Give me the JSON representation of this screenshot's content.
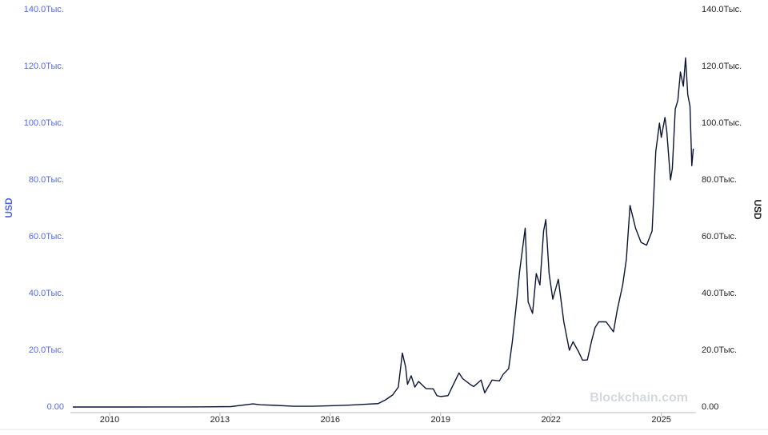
{
  "chart_data": {
    "type": "line",
    "y_label": "USD",
    "y2_label": "USD",
    "annotation": "Blockchain.com",
    "color": "#0b1433",
    "x": [
      2009.0,
      2010.5,
      2011.45,
      2012.0,
      2013.3,
      2013.9,
      2014.1,
      2014.5,
      2015.0,
      2015.5,
      2016.0,
      2016.5,
      2017.0,
      2017.3,
      2017.5,
      2017.7,
      2017.85,
      2017.96,
      2018.05,
      2018.1,
      2018.2,
      2018.3,
      2018.4,
      2018.6,
      2018.8,
      2018.9,
      2019.0,
      2019.2,
      2019.35,
      2019.5,
      2019.6,
      2019.8,
      2019.9,
      2020.1,
      2020.2,
      2020.4,
      2020.6,
      2020.7,
      2020.85,
      2020.95,
      2021.05,
      2021.15,
      2021.25,
      2021.3,
      2021.38,
      2021.5,
      2021.6,
      2021.7,
      2021.8,
      2021.86,
      2021.95,
      2022.05,
      2022.2,
      2022.35,
      2022.5,
      2022.6,
      2022.75,
      2022.86,
      2022.99,
      2023.1,
      2023.2,
      2023.3,
      2023.5,
      2023.7,
      2023.8,
      2023.95,
      2024.05,
      2024.15,
      2024.3,
      2024.45,
      2024.6,
      2024.75,
      2024.85,
      2024.95,
      2025.0,
      2025.1,
      2025.15,
      2025.25,
      2025.3,
      2025.38,
      2025.45,
      2025.52,
      2025.6,
      2025.66,
      2025.72,
      2025.78,
      2025.83,
      2025.87
    ],
    "values": [
      0,
      0.07,
      30,
      5,
      140,
      1100,
      800,
      600,
      250,
      250,
      430,
      650,
      1000,
      1200,
      2500,
      4300,
      7000,
      19000,
      14000,
      8000,
      11000,
      7000,
      9000,
      6500,
      6400,
      4000,
      3700,
      4000,
      8000,
      12000,
      10000,
      8000,
      7200,
      9500,
      5000,
      9500,
      9200,
      11500,
      13500,
      23000,
      35000,
      48000,
      58000,
      63000,
      37000,
      33000,
      47000,
      43000,
      62000,
      66000,
      47000,
      38000,
      45000,
      30000,
      20000,
      23000,
      19500,
      16500,
      16600,
      23000,
      28000,
      30000,
      30000,
      26500,
      34000,
      43000,
      52000,
      71000,
      63000,
      58000,
      57000,
      62000,
      90000,
      100000,
      95000,
      102000,
      97000,
      80000,
      84000,
      105000,
      108000,
      118000,
      113000,
      123000,
      110000,
      106000,
      85000,
      91000
    ],
    "xlim": [
      2009.0,
      2025.9
    ],
    "xticks": [
      2010,
      2013,
      2016,
      2019,
      2022,
      2025
    ],
    "ylim": [
      0,
      140000
    ],
    "yticks": [
      {
        "value": 0,
        "label": "0.00"
      },
      {
        "value": 20000,
        "label": "20.0Тыс."
      },
      {
        "value": 40000,
        "label": "40.0Тыс."
      },
      {
        "value": 60000,
        "label": "60.0Тыс."
      },
      {
        "value": 80000,
        "label": "80.0Тыс."
      },
      {
        "value": 100000,
        "label": "100.0Тыс."
      },
      {
        "value": 120000,
        "label": "120.0Тыс."
      },
      {
        "value": 140000,
        "label": "140.0Тыс."
      }
    ],
    "y2lim": [
      0,
      140000
    ],
    "y2ticks": [
      {
        "value": 0,
        "label": "0.00"
      },
      {
        "value": 20000,
        "label": "20.0Тыс."
      },
      {
        "value": 40000,
        "label": "40.0Тыс."
      },
      {
        "value": 60000,
        "label": "60.0Тыс."
      },
      {
        "value": 80000,
        "label": "80.0Тыс."
      },
      {
        "value": 100000,
        "label": "100.0Тыс."
      },
      {
        "value": 120000,
        "label": "120.0Тыс."
      },
      {
        "value": 140000,
        "label": "140.0Тыс."
      }
    ]
  }
}
